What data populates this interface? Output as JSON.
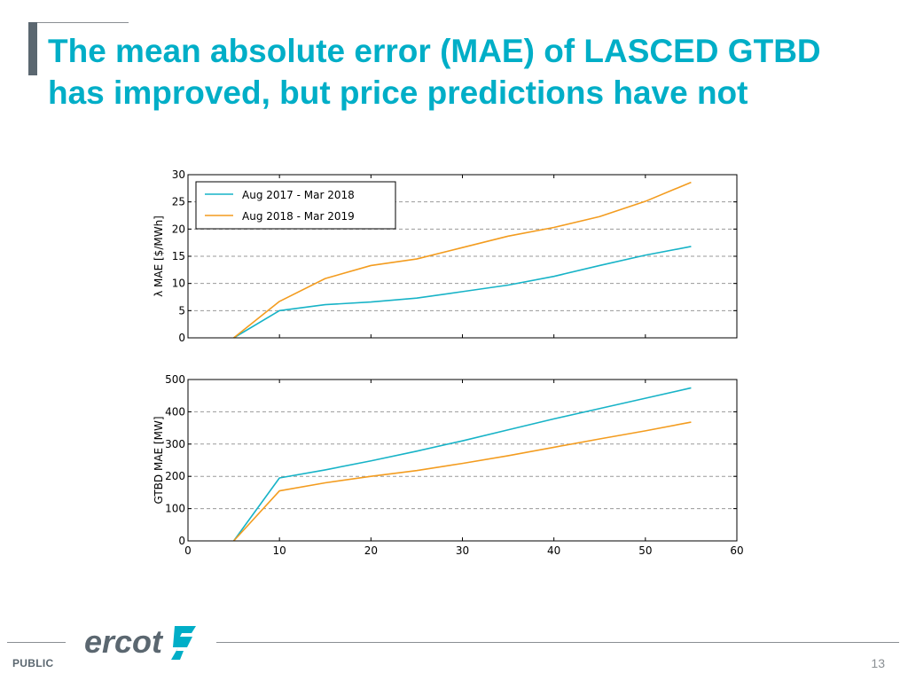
{
  "slide": {
    "title": "The mean absolute error (MAE) of LASCED GTBD has improved, but price predictions have not",
    "footer_label": "PUBLIC",
    "page_number": "13",
    "logo_text": "ercot"
  },
  "colors": {
    "title": "#00aec7",
    "series_2017": "#17b3c7",
    "series_2018": "#f39c1f",
    "footer_text": "#5b6770"
  },
  "chart_data": [
    {
      "type": "line",
      "ylabel": "λ MAE [$/MWh]",
      "xlim": [
        0,
        60
      ],
      "ylim": [
        0,
        30
      ],
      "yticks": [
        0,
        5,
        10,
        15,
        20,
        25,
        30
      ],
      "grid": "horizontal-dashed",
      "legend": "top-left",
      "series": [
        {
          "name": "Aug 2017 - Mar 2018",
          "color": "#17b3c7",
          "x": [
            5,
            10,
            15,
            20,
            25,
            30,
            35,
            40,
            45,
            50,
            55
          ],
          "y": [
            0,
            5.0,
            6.1,
            6.6,
            7.3,
            8.5,
            9.7,
            11.3,
            13.3,
            15.2,
            16.8
          ]
        },
        {
          "name": "Aug 2018 - Mar 2019",
          "color": "#f39c1f",
          "x": [
            5,
            10,
            15,
            20,
            25,
            30,
            35,
            40,
            45,
            50,
            55
          ],
          "y": [
            0,
            6.7,
            10.9,
            13.3,
            14.5,
            16.6,
            18.7,
            20.3,
            22.3,
            25.1,
            28.6
          ]
        }
      ]
    },
    {
      "type": "line",
      "ylabel": "GTBD MAE [MW]",
      "xlim": [
        0,
        60
      ],
      "ylim": [
        0,
        500
      ],
      "xticks": [
        0,
        10,
        20,
        30,
        40,
        50,
        60
      ],
      "yticks": [
        0,
        100,
        200,
        300,
        400,
        500
      ],
      "grid": "horizontal-dashed",
      "series": [
        {
          "name": "Aug 2017 - Mar 2018",
          "color": "#17b3c7",
          "x": [
            5,
            10,
            15,
            20,
            25,
            30,
            35,
            40,
            45,
            50,
            55
          ],
          "y": [
            0,
            195,
            220,
            248,
            278,
            310,
            344,
            378,
            410,
            442,
            474
          ]
        },
        {
          "name": "Aug 2018 - Mar 2019",
          "color": "#f39c1f",
          "x": [
            5,
            10,
            15,
            20,
            25,
            30,
            35,
            40,
            45,
            50,
            55
          ],
          "y": [
            0,
            155,
            180,
            200,
            218,
            240,
            264,
            290,
            316,
            341,
            368
          ]
        }
      ]
    }
  ]
}
